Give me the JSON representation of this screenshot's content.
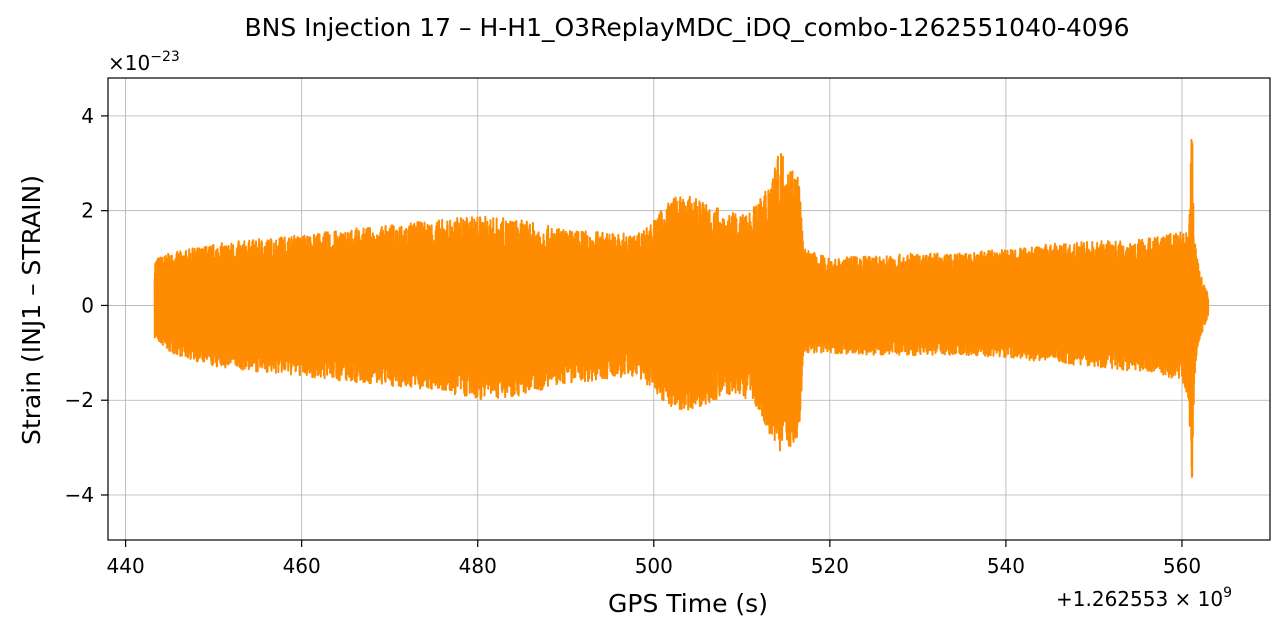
{
  "chart_data": {
    "type": "line",
    "title": "BNS Injection 17 – H-H1_O3ReplayMDC_iDQ_combo-1262551040-4096",
    "xlabel": "GPS Time (s)",
    "ylabel": "Strain (INJ1 – STRAIN)",
    "x_offset_label": "+1.262553 × 10",
    "x_offset_exp": "9",
    "y_scale_label": "×10",
    "y_scale_exp": "−23",
    "xlim": [
      438,
      570
    ],
    "ylim": [
      -4.95,
      4.8
    ],
    "xticks": [
      440,
      460,
      480,
      500,
      520,
      540,
      560
    ],
    "xtick_labels": [
      "440",
      "460",
      "480",
      "500",
      "520",
      "540",
      "560"
    ],
    "yticks": [
      -4,
      -2,
      0,
      2,
      4
    ],
    "ytick_labels": [
      "−4",
      "−2",
      "0",
      "2",
      "4"
    ],
    "grid": true,
    "series": [
      {
        "color": "#ff8c00",
        "envelope": {
          "x": [
            443.3,
            445,
            450,
            455,
            460,
            465,
            470,
            475,
            480,
            485,
            490,
            495,
            498,
            500,
            502,
            504,
            506,
            508,
            510,
            512,
            513.5,
            514.5,
            515.5,
            516.5,
            517,
            520,
            525,
            530,
            535,
            540,
            545,
            550,
            555,
            558,
            560,
            560.8,
            561.1,
            561.4,
            562,
            563
          ],
          "upper": [
            1.0,
            1.1,
            1.3,
            1.4,
            1.5,
            1.6,
            1.7,
            1.8,
            1.9,
            1.8,
            1.6,
            1.55,
            1.5,
            1.8,
            2.3,
            2.3,
            2.2,
            2.0,
            1.9,
            2.2,
            2.9,
            3.3,
            3.0,
            2.8,
            1.2,
            1.0,
            1.05,
            1.1,
            1.1,
            1.2,
            1.3,
            1.35,
            1.4,
            1.5,
            1.55,
            1.7,
            4.3,
            1.5,
            0.7,
            0.2
          ],
          "lower": [
            -0.7,
            -1.0,
            -1.3,
            -1.4,
            -1.5,
            -1.6,
            -1.7,
            -1.8,
            -2.0,
            -1.9,
            -1.65,
            -1.55,
            -1.5,
            -1.8,
            -2.2,
            -2.2,
            -2.1,
            -1.9,
            -1.9,
            -2.2,
            -2.9,
            -3.1,
            -3.0,
            -2.8,
            -1.0,
            -1.0,
            -1.05,
            -1.05,
            -1.05,
            -1.1,
            -1.2,
            -1.3,
            -1.4,
            -1.5,
            -1.6,
            -2.0,
            -4.5,
            -1.5,
            -0.7,
            -0.2
          ]
        }
      }
    ]
  }
}
